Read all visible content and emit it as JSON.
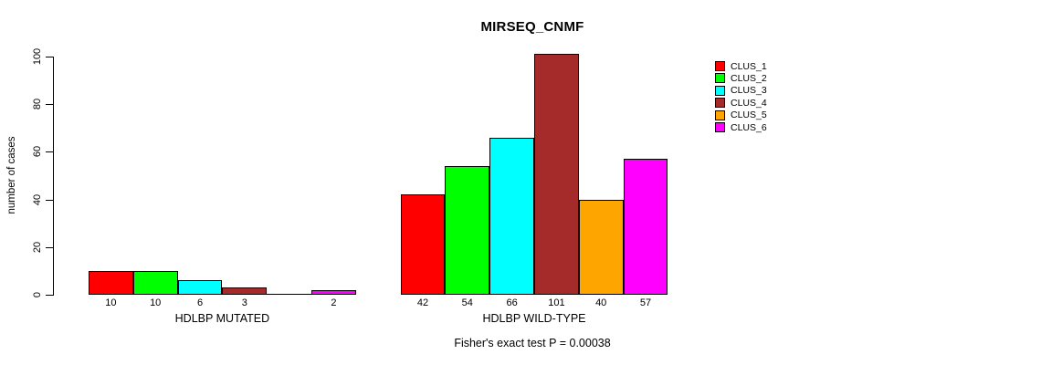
{
  "figure": {
    "title": "MIRSEQ_CNMF",
    "ylabel": "number of cases",
    "annotation": "Fisher's exact test P = 0.00038"
  },
  "chart_data": {
    "type": "bar",
    "title": "MIRSEQ_CNMF",
    "xlabel": "",
    "ylabel": "number of cases",
    "ylim": [
      0,
      100
    ],
    "yticks": [
      0,
      20,
      40,
      60,
      80,
      100
    ],
    "grid": false,
    "legend_position": "top-right",
    "categories": [
      "HDLBP MUTATED",
      "HDLBP WILD-TYPE"
    ],
    "series": [
      {
        "name": "CLUS_1",
        "color": "#FF0000",
        "values": [
          10,
          42
        ]
      },
      {
        "name": "CLUS_2",
        "color": "#00FF00",
        "values": [
          10,
          54
        ]
      },
      {
        "name": "CLUS_3",
        "color": "#00FFFF",
        "values": [
          6,
          66
        ]
      },
      {
        "name": "CLUS_4",
        "color": "#A52A2A",
        "values": [
          3,
          101
        ]
      },
      {
        "name": "CLUS_5",
        "color": "#FFA500",
        "values": [
          0,
          40
        ]
      },
      {
        "name": "CLUS_6",
        "color": "#FF00FF",
        "values": [
          2,
          57
        ]
      }
    ],
    "bar_labels": [
      [
        "10",
        "10",
        "6",
        "3",
        "",
        "2"
      ],
      [
        "42",
        "54",
        "66",
        "101",
        "40",
        "57"
      ]
    ],
    "annotation": "Fisher's exact test P = 0.00038"
  }
}
